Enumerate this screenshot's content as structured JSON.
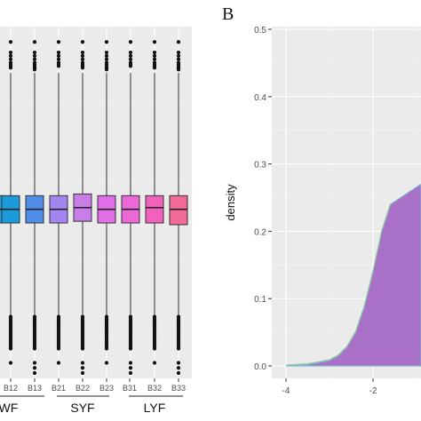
{
  "panel_b_label": "B",
  "colors": {
    "panel_bg": "#ebebeb",
    "grid_major": "#ffffff",
    "box_fills": [
      "#1fa0e0",
      "#1c9bdb",
      "#4f8de8",
      "#a386f0",
      "#c97de8",
      "#e06ee6",
      "#ec67d8",
      "#f261bc",
      "#f26a96"
    ],
    "density_fill": "#a970c8"
  },
  "chart_data": [
    {
      "type": "box",
      "categories": [
        "B12",
        "B13",
        "B21",
        "B22",
        "B23",
        "B31",
        "B32",
        "B33"
      ],
      "group_labels": [
        "GWF",
        "SYF",
        "LYF"
      ],
      "boxes": [
        {
          "category": "",
          "q1": 0.44,
          "median": 0.48,
          "q3": 0.52
        },
        {
          "category": "B12",
          "q1": 0.44,
          "median": 0.48,
          "q3": 0.52
        },
        {
          "category": "B13",
          "q1": 0.44,
          "median": 0.48,
          "q3": 0.52
        },
        {
          "category": "B21",
          "q1": 0.44,
          "median": 0.48,
          "q3": 0.52
        },
        {
          "category": "B22",
          "q1": 0.445,
          "median": 0.485,
          "q3": 0.525
        },
        {
          "category": "B23",
          "q1": 0.44,
          "median": 0.48,
          "q3": 0.52
        },
        {
          "category": "B31",
          "q1": 0.44,
          "median": 0.48,
          "q3": 0.52
        },
        {
          "category": "B32",
          "q1": 0.44,
          "median": 0.485,
          "q3": 0.52
        },
        {
          "category": "B33",
          "q1": 0.435,
          "median": 0.48,
          "q3": 0.52
        }
      ],
      "grid": true
    },
    {
      "type": "area",
      "ylabel": "density",
      "x_ticks": [
        "-4",
        "-2"
      ],
      "y_ticks": [
        "0.0",
        "0.1",
        "0.2",
        "0.3",
        "0.4",
        "0.5"
      ],
      "xlim": [
        -4.2,
        -0.7
      ],
      "ylim": [
        0,
        0.5
      ],
      "grid": true,
      "x": [
        -4.0,
        -3.5,
        -3.0,
        -2.8,
        -2.6,
        -2.4,
        -2.2,
        -2.0,
        -1.8,
        -1.6
      ],
      "y": [
        0.0,
        0.002,
        0.008,
        0.015,
        0.028,
        0.05,
        0.088,
        0.14,
        0.2,
        0.24
      ]
    }
  ]
}
